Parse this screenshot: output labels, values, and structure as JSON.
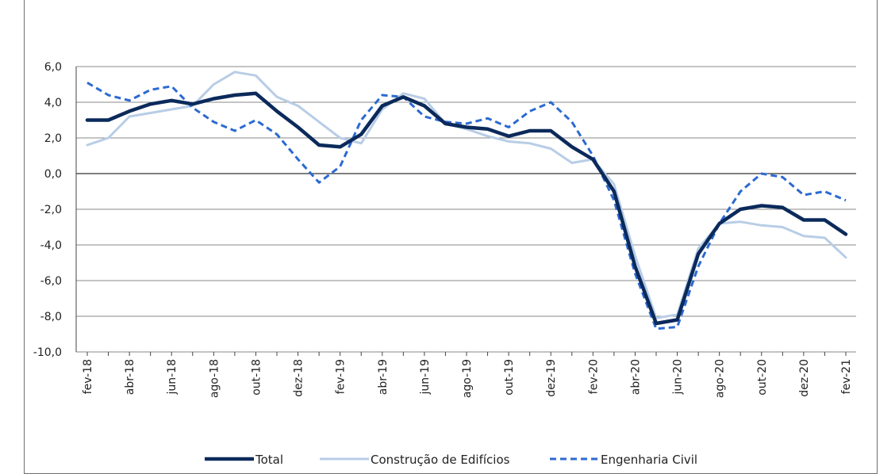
{
  "chart_data": {
    "type": "line",
    "categories": [
      "fev-18",
      "mar-18",
      "abr-18",
      "mai-18",
      "jun-18",
      "jul-18",
      "ago-18",
      "set-18",
      "out-18",
      "nov-18",
      "dez-18",
      "jan-19",
      "fev-19",
      "mar-19",
      "abr-19",
      "mai-19",
      "jun-19",
      "jul-19",
      "ago-19",
      "set-19",
      "out-19",
      "nov-19",
      "dez-19",
      "jan-20",
      "fev-20",
      "mar-20",
      "abr-20",
      "mai-20",
      "jun-20",
      "jul-20",
      "ago-20",
      "set-20",
      "out-20",
      "nov-20",
      "dez-20",
      "jan-21",
      "fev-21"
    ],
    "tick_labels": [
      "fev-18",
      "abr-18",
      "jun-18",
      "ago-18",
      "out-18",
      "dez-18",
      "fev-19",
      "abr-19",
      "jun-19",
      "ago-19",
      "out-19",
      "dez-19",
      "fev-20",
      "abr-20",
      "jun-20",
      "ago-20",
      "out-20",
      "dez-20",
      "fev-21"
    ],
    "ylim": [
      -10,
      6
    ],
    "yticks": [
      "6,0",
      "4,0",
      "2,0",
      "0,0",
      "-2,0",
      "-4,0",
      "-6,0",
      "-8,0",
      "-10,0"
    ],
    "grid": true,
    "legend_position": "bottom",
    "series": [
      {
        "name": "Total",
        "color": "#0b2a5b",
        "style": "solid-thick",
        "values": [
          3.0,
          3.0,
          3.5,
          3.9,
          4.1,
          3.9,
          4.2,
          4.4,
          4.5,
          3.5,
          2.6,
          1.6,
          1.5,
          2.2,
          3.8,
          4.3,
          3.8,
          2.8,
          2.6,
          2.5,
          2.1,
          2.4,
          2.4,
          1.5,
          0.8,
          -1.0,
          -5.2,
          -8.4,
          -8.2,
          -4.5,
          -2.8,
          -2.0,
          -1.8,
          -1.9,
          -2.6,
          -2.6,
          -3.4
        ]
      },
      {
        "name": "Construção de Edifícios",
        "color": "#b8cde6",
        "style": "solid",
        "values": [
          1.6,
          2.0,
          3.2,
          3.4,
          3.6,
          3.8,
          5.0,
          5.7,
          5.5,
          4.3,
          3.8,
          2.9,
          2.0,
          1.7,
          3.6,
          4.5,
          4.2,
          2.8,
          2.5,
          2.1,
          1.8,
          1.7,
          1.4,
          0.6,
          0.8,
          -0.6,
          -4.6,
          -8.1,
          -7.9,
          -4.2,
          -2.8,
          -2.7,
          -2.9,
          -3.0,
          -3.5,
          -3.6,
          -4.7
        ]
      },
      {
        "name": "Engenharia Civil",
        "color": "#2b6ad1",
        "style": "dashed",
        "values": [
          5.1,
          4.4,
          4.1,
          4.7,
          4.9,
          3.7,
          2.9,
          2.4,
          3.0,
          2.2,
          0.8,
          -0.5,
          0.4,
          3.0,
          4.4,
          4.3,
          3.2,
          2.9,
          2.8,
          3.1,
          2.6,
          3.5,
          4.0,
          2.9,
          1.0,
          -1.5,
          -5.6,
          -8.7,
          -8.6,
          -5.2,
          -2.8,
          -1.0,
          0.0,
          -0.2,
          -1.2,
          -1.0,
          -1.5
        ]
      }
    ]
  }
}
